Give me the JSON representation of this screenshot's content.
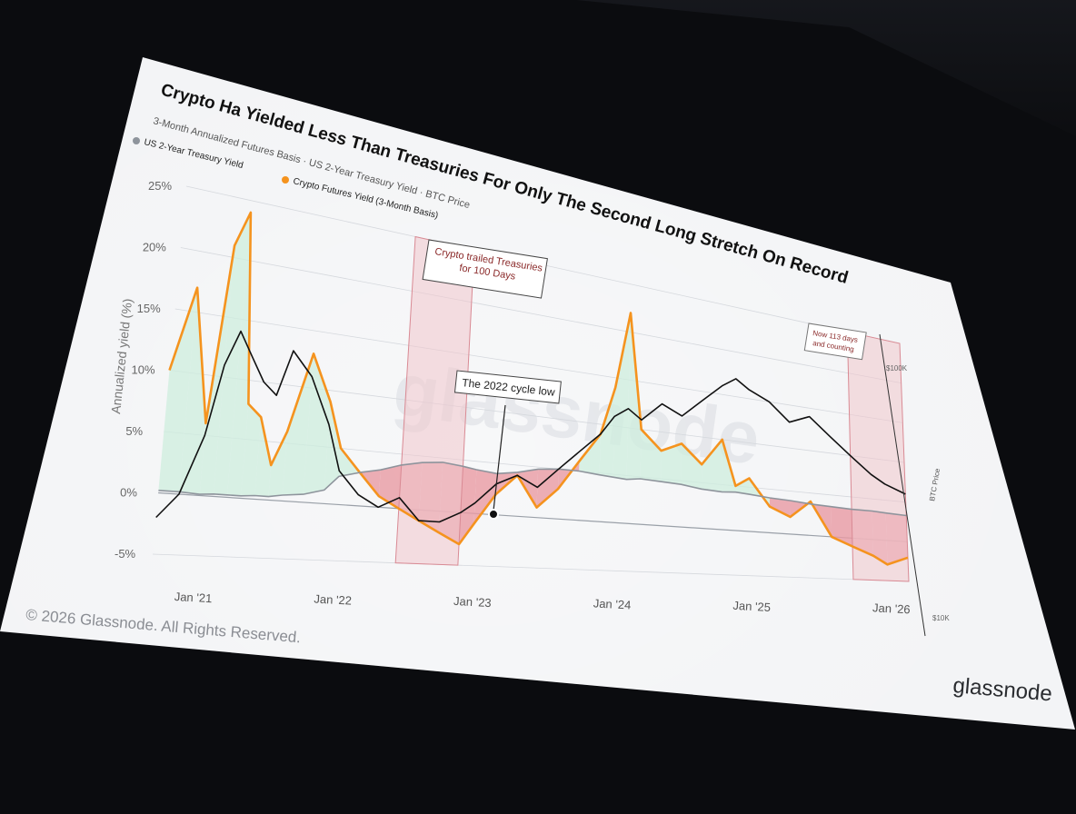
{
  "title": "Crypto Ha Yielded Less Than Treasuries For Only The Second Long Stretch On Record",
  "subtitle": "3-Month Annualized Futures Basis · US 2-Year Treasury Yield · BTC Price",
  "legend": {
    "treasury": "US 2-Year Treasury Yield",
    "crypto": "Crypto Futures Yield (3-Month Basis)"
  },
  "annotations": {
    "period1": [
      "Crypto trailed Treasuries",
      "for 100 Days"
    ],
    "bottom": "The 2022 cycle low",
    "period2": [
      "Now 113 days",
      "and counting"
    ]
  },
  "watermark": "glassnode",
  "brand": "glassnode",
  "copyright": "© 2026 Glassnode. All Rights Reserved.",
  "colors": {
    "crypto": "#f5931e",
    "btc": "#111111",
    "treasury": "#8e949c",
    "positive_fill": "#cdeedd",
    "negative_fill": "#e89aa3",
    "highlight": "#f1c7cc"
  },
  "chart_data": {
    "type": "line",
    "title": "Crypto Ha Yielded Less Than Treasuries For Only The Second Long Stretch On Record",
    "subtitle": "3-Month Annualized Futures Basis · US 2-Year Treasury Yield · BTC Price",
    "xlabel": "",
    "ylabel": "Annualized yield (%)",
    "y2label": "BTC Price",
    "ylim": [
      -5,
      25
    ],
    "y_ticks": [
      "25%",
      "20%",
      "15%",
      "10%",
      "5%",
      "0%",
      "-5%"
    ],
    "x_ticks": [
      "Jan '21",
      "Jan '22",
      "Jan '23",
      "Jan '24",
      "Jan '25",
      "Jan '26"
    ],
    "y2_ticks": [
      "$100K",
      "$10K"
    ],
    "grid": true,
    "legend_position": "top-left",
    "x": [
      2020.7,
      2020.85,
      2021.0,
      2021.1,
      2021.2,
      2021.3,
      2021.4,
      2021.5,
      2021.6,
      2021.75,
      2021.9,
      2022.0,
      2022.15,
      2022.3,
      2022.45,
      2022.6,
      2022.75,
      2022.9,
      2023.0,
      2023.15,
      2023.3,
      2023.45,
      2023.6,
      2023.75,
      2023.9,
      2024.0,
      2024.1,
      2024.2,
      2024.35,
      2024.5,
      2024.65,
      2024.8,
      2024.9,
      2025.0,
      2025.15,
      2025.3,
      2025.45,
      2025.6,
      2025.75,
      2025.9,
      2026.0,
      2026.15
    ],
    "series": [
      {
        "name": "Crypto Futures Yield (3-Month Basis)",
        "values": [
          10,
          17,
          6,
          21,
          24,
          8,
          7,
          3,
          6,
          13,
          9,
          5,
          3,
          1,
          0,
          -1,
          -2,
          -3,
          -1,
          2,
          4,
          1,
          3,
          6,
          9,
          14,
          22,
          10,
          8,
          9,
          7,
          10,
          5,
          6,
          3,
          2,
          4,
          0,
          -1,
          -2,
          -3,
          -2
        ]
      },
      {
        "name": "US 2-Year Treasury Yield",
        "values": [
          0.2,
          0.2,
          0.1,
          0.2,
          0.2,
          0.2,
          0.3,
          0.3,
          0.5,
          0.7,
          1.2,
          2.5,
          3.0,
          3.4,
          4.0,
          4.4,
          4.6,
          4.4,
          4.2,
          4.0,
          4.3,
          4.8,
          5.0,
          5.0,
          4.8,
          4.7,
          4.6,
          4.8,
          4.7,
          4.6,
          4.3,
          4.2,
          4.3,
          4.2,
          4.0,
          3.9,
          3.7,
          3.6,
          3.5,
          3.5,
          3.4,
          3.3
        ]
      },
      {
        "name": "BTC Price",
        "values": [
          -2,
          0,
          5,
          11,
          14,
          12,
          10,
          9,
          13,
          11,
          7,
          3,
          1,
          0,
          1,
          -1,
          -1,
          0,
          1,
          3,
          4,
          3,
          5,
          7,
          9,
          11,
          12,
          11,
          13,
          12,
          14,
          16,
          17,
          16,
          15,
          13,
          14,
          12,
          10,
          8,
          7,
          6
        ]
      }
    ],
    "highlight_periods": [
      {
        "label": "Crypto trailed Treasuries for 100 Days",
        "start": 2022.45,
        "end": 2022.9
      },
      {
        "label": "Now 113 days and counting",
        "start": 2025.75,
        "end": 2026.15
      }
    ]
  }
}
